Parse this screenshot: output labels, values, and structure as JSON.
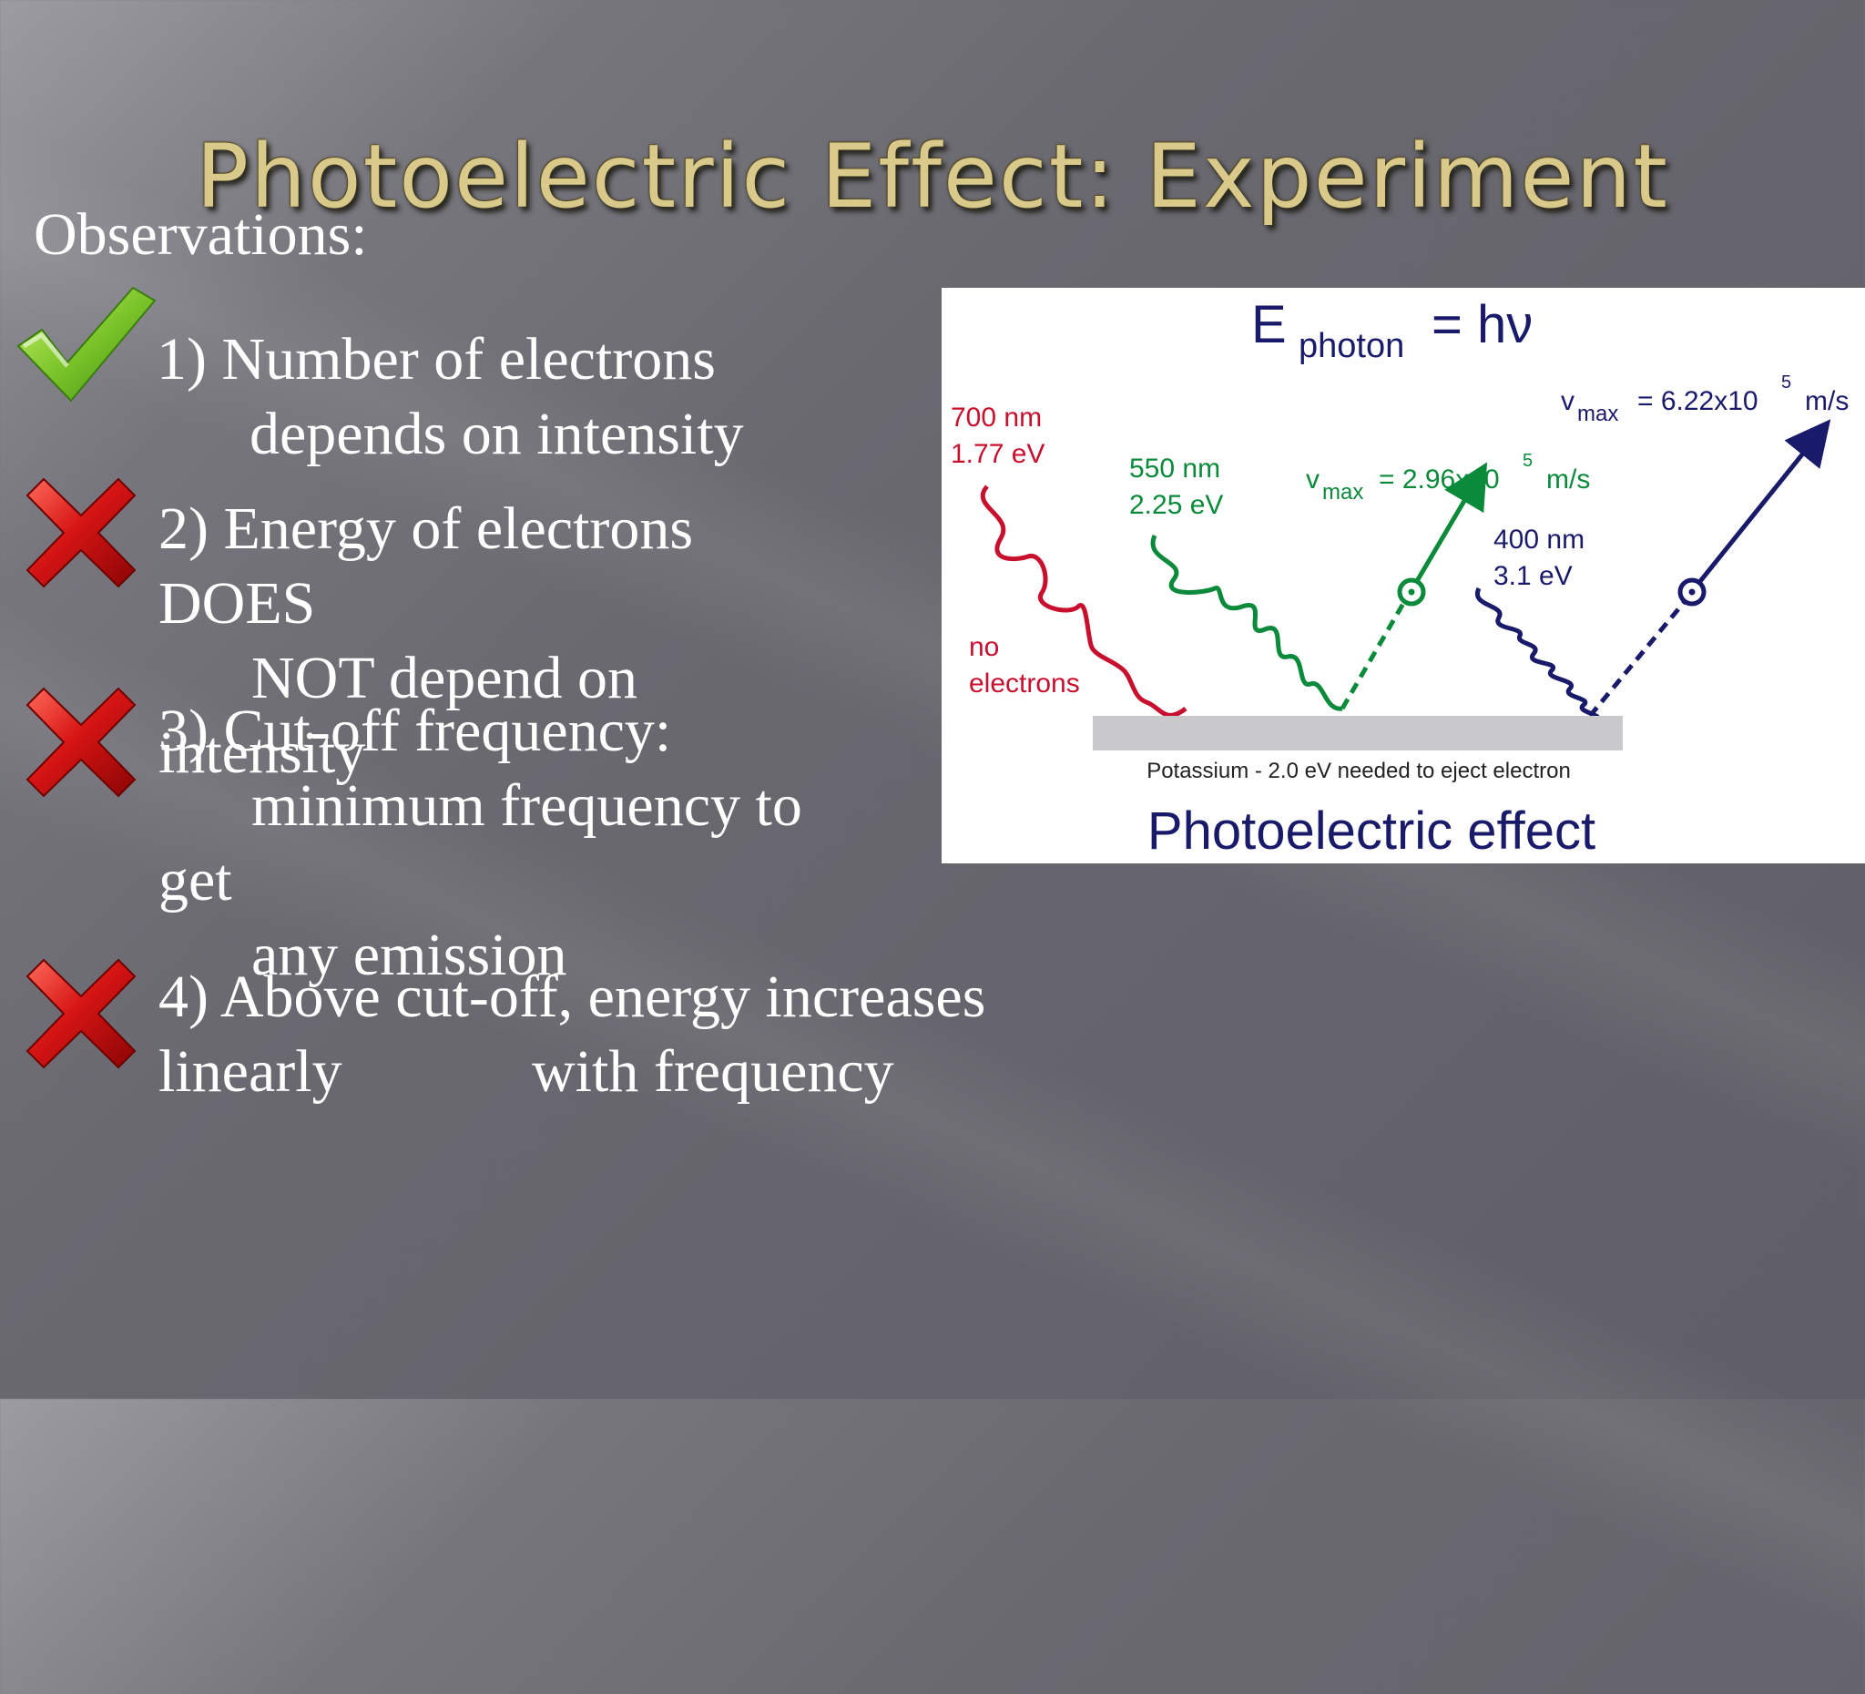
{
  "slide": {
    "title": "Photoelectric Effect: Experiment",
    "observations_heading": "Observations:"
  },
  "observations": [
    {
      "status": "check",
      "lines": [
        "1) Number of electrons",
        "depends on intensity"
      ]
    },
    {
      "status": "cross",
      "lines": [
        "2) Energy of electrons",
        "DOES",
        "NOT depend on",
        "intensity"
      ]
    },
    {
      "status": "cross",
      "lines": [
        "3) Cut-off frequency:",
        "minimum frequency to",
        "get",
        "any emission"
      ]
    },
    {
      "status": "cross",
      "lines": [
        "4) Above cut-off, energy increases",
        "linearly",
        "with frequency"
      ]
    }
  ],
  "colors": {
    "title": "#d9c98a",
    "check": "#6fbf24",
    "cross": "#cc1111",
    "red_light": "#c8102e",
    "green_light": "#0a8a3a",
    "violet_light": "#1a1a6b"
  },
  "figure": {
    "equation": {
      "E": "E",
      "sub": "photon",
      "rhs": "= hν"
    },
    "red": {
      "wavelength": "700 nm",
      "energy": "1.77 eV",
      "result_1": "no",
      "result_2": "electrons"
    },
    "green": {
      "wavelength": "550 nm",
      "energy": "2.25 eV",
      "v": "v",
      "vsub": "max",
      "vval": "= 2.96x10",
      "vexp": "5",
      "vunit": "m/s"
    },
    "violet": {
      "wavelength": "400 nm",
      "energy": "3.1 eV",
      "v": "v",
      "vsub": "max",
      "vval": "= 6.22x10",
      "vexp": "5",
      "vunit": "m/s"
    },
    "plate_caption": "Potassium - 2.0 eV needed to eject electron",
    "caption": "Photoelectric effect"
  }
}
